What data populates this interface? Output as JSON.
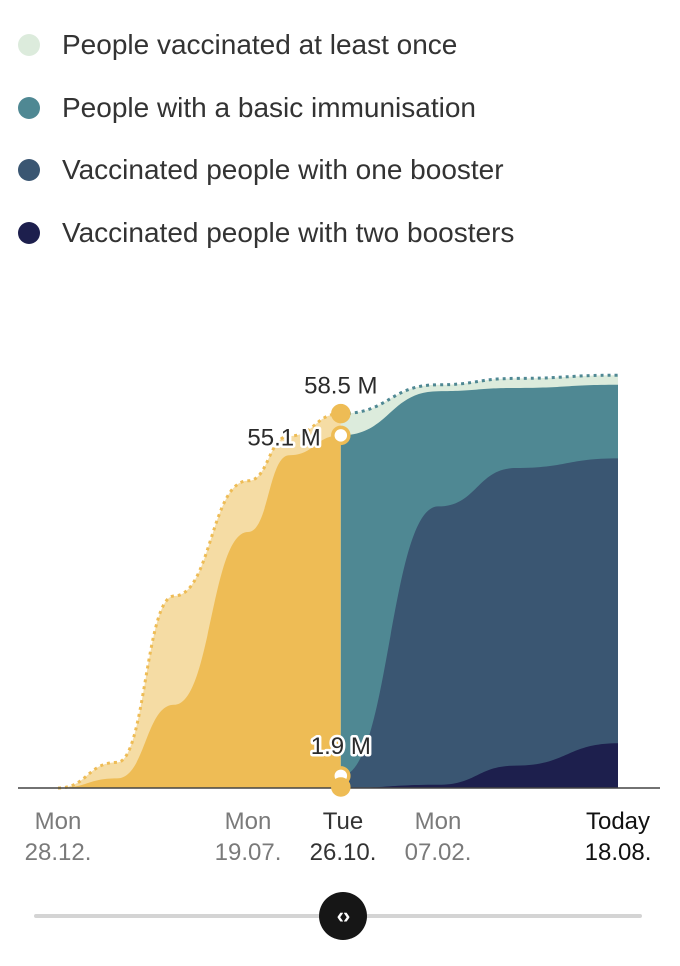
{
  "legend": [
    {
      "label": "People vaccinated at least once",
      "color": "#dcebdc"
    },
    {
      "label": "People with a basic immunisation",
      "color": "#4f8893"
    },
    {
      "label": "Vaccinated people with one booster",
      "color": "#3a5672"
    },
    {
      "label": "Vaccinated people with two boosters",
      "color": "#1d1f4d"
    }
  ],
  "colors": {
    "past_at_least_once": "#f5dca4",
    "past_basic": "#eebc55",
    "past_dotted": "#eebc55",
    "future_dotted": "#4f8893"
  },
  "annotations": {
    "at_least_once": "58.5 M",
    "basic": "55.1 M",
    "booster": "1.9 M"
  },
  "x_axis": [
    {
      "day": "Mon",
      "date": "28.12."
    },
    {
      "day": "Mon",
      "date": "19.07."
    },
    {
      "day": "Tue",
      "date": "26.10.",
      "selected": true
    },
    {
      "day": "Mon",
      "date": "07.02."
    },
    {
      "day": "Today",
      "date": "18.08.",
      "today": true
    }
  ],
  "slider": {
    "handle_icon": "chevron-left-right-icon",
    "position": 0.5
  },
  "chart_data": {
    "type": "area",
    "x": [
      "2020-12-28",
      "2021-03-01",
      "2021-05-01",
      "2021-07-19",
      "2021-09-01",
      "2021-10-26",
      "2022-02-07",
      "2022-05-01",
      "2022-08-18"
    ],
    "series": [
      {
        "name": "People vaccinated at least once",
        "values": [
          0,
          4,
          30,
          48,
          55,
          58.5,
          63,
          64,
          64.5
        ]
      },
      {
        "name": "People with a basic immunisation",
        "values": [
          0,
          1.5,
          13,
          40,
          52,
          55.1,
          62,
          62.5,
          63
        ]
      },
      {
        "name": "Vaccinated people with one booster",
        "values": [
          0,
          0,
          0,
          0,
          0.5,
          1.9,
          44,
          50,
          51.5
        ]
      },
      {
        "name": "Vaccinated people with two boosters",
        "values": [
          0,
          0,
          0,
          0,
          0,
          0,
          0.5,
          3.5,
          7
        ]
      }
    ],
    "selected_x": "2021-10-26",
    "ylim": [
      0,
      70
    ],
    "grid": false,
    "legend_placement": "top-left"
  }
}
